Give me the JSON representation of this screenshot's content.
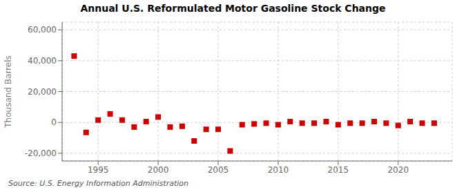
{
  "chart_data": {
    "type": "scatter",
    "title": "Annual U.S. Reformulated Motor Gasoline Stock Change",
    "ylabel": "Thousand Barrels",
    "source": "Source: U.S. Energy Information Administration",
    "x": [
      1993,
      1994,
      1995,
      1996,
      1997,
      1998,
      1999,
      2000,
      2001,
      2002,
      2003,
      2004,
      2005,
      2006,
      2007,
      2008,
      2009,
      2010,
      2011,
      2012,
      2013,
      2014,
      2015,
      2016,
      2017,
      2018,
      2019,
      2020,
      2021,
      2022,
      2023
    ],
    "values": [
      43000,
      -6500,
      1500,
      5500,
      1500,
      -3000,
      500,
      3500,
      -3000,
      -2500,
      -12000,
      -4500,
      -4500,
      -18500,
      -1500,
      -1000,
      -500,
      -1500,
      500,
      -500,
      -500,
      500,
      -1500,
      -500,
      -500,
      500,
      -500,
      -2000,
      500,
      -500,
      -500
    ],
    "color": "#cc0000",
    "marker": "square",
    "xlim": [
      1992.0,
      2024.5
    ],
    "ylim": [
      -25000,
      65000
    ],
    "xticks": [
      1995,
      2000,
      2005,
      2010,
      2015,
      2020
    ],
    "yticks": [
      {
        "value": -20000,
        "label": "-20,000"
      },
      0,
      {
        "value": 20000,
        "label": "20,000"
      },
      {
        "value": 40000,
        "label": "40,000"
      },
      {
        "value": 60000,
        "label": "60,000"
      }
    ],
    "grid": true
  }
}
